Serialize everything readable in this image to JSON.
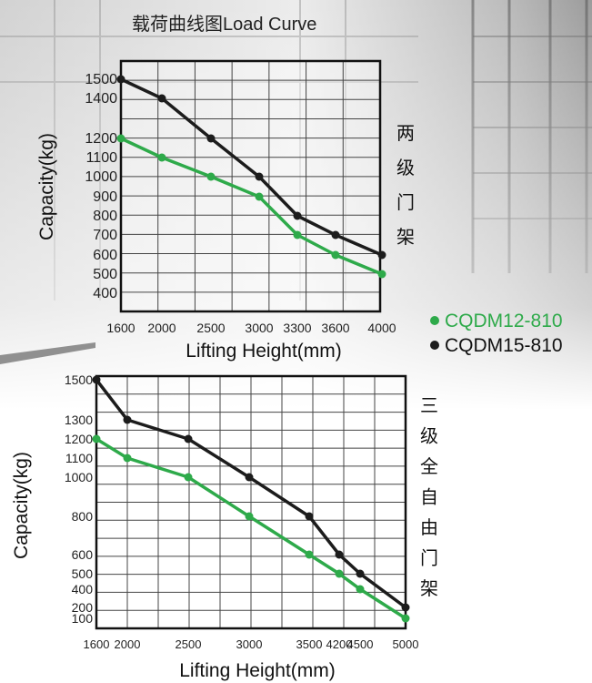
{
  "chart_data": [
    {
      "type": "line",
      "title": "载荷曲线图Load Curve",
      "side_label": [
        "两",
        "级",
        "门",
        "架"
      ],
      "xlabel": "Lifting Height(mm)",
      "ylabel": "Capacity(kg)",
      "x_ticks": [
        "1600",
        "2000",
        "2500",
        "3000",
        "3300",
        "3600",
        "4000"
      ],
      "y_ticks": [
        "1500",
        "1400",
        "1200",
        "1100",
        "1000",
        "900",
        "800",
        "700",
        "600",
        "500",
        "400"
      ],
      "x": [
        "1600",
        "2000",
        "2500",
        "3000",
        "3300",
        "3600",
        "4000"
      ],
      "grid": true,
      "series": [
        {
          "name": "CQDM12-810",
          "color": "#2eaa4a",
          "values": [
            1200,
            1100,
            1000,
            900,
            700,
            600,
            500
          ]
        },
        {
          "name": "CQDM15-810",
          "color": "#1c1c1c",
          "values": [
            1500,
            1400,
            1200,
            1000,
            800,
            700,
            600
          ]
        }
      ],
      "legend": [
        {
          "name": "CQDM12-810",
          "color": "#2eaa4a"
        },
        {
          "name": "CQDM15-810",
          "color": "#1c1c1c"
        }
      ],
      "legend_position": "right"
    },
    {
      "type": "line",
      "title": "",
      "side_label": [
        "三",
        "级",
        "全",
        "自",
        "由",
        "门",
        "架"
      ],
      "xlabel": "Lifting Height(mm)",
      "ylabel": "Capacity(kg)",
      "x_ticks": [
        "1600",
        "2000",
        "2500",
        "3000",
        "3500",
        "4200",
        "4500",
        "5000"
      ],
      "y_ticks": [
        "1500",
        "1300",
        "1200",
        "1100",
        "1000",
        "800",
        "600",
        "500",
        "400",
        "200",
        "100"
      ],
      "x": [
        "1600",
        "2000",
        "2500",
        "3000",
        "3500",
        "4200",
        "4500",
        "5000"
      ],
      "grid": true,
      "series": [
        {
          "name": "CQDM12-810",
          "color": "#2eaa4a",
          "values": [
            1200,
            1100,
            1000,
            800,
            600,
            500,
            400,
            100
          ]
        },
        {
          "name": "CQDM15-810",
          "color": "#1c1c1c",
          "values": [
            1500,
            1300,
            1200,
            1000,
            800,
            600,
            500,
            200
          ]
        }
      ]
    }
  ]
}
